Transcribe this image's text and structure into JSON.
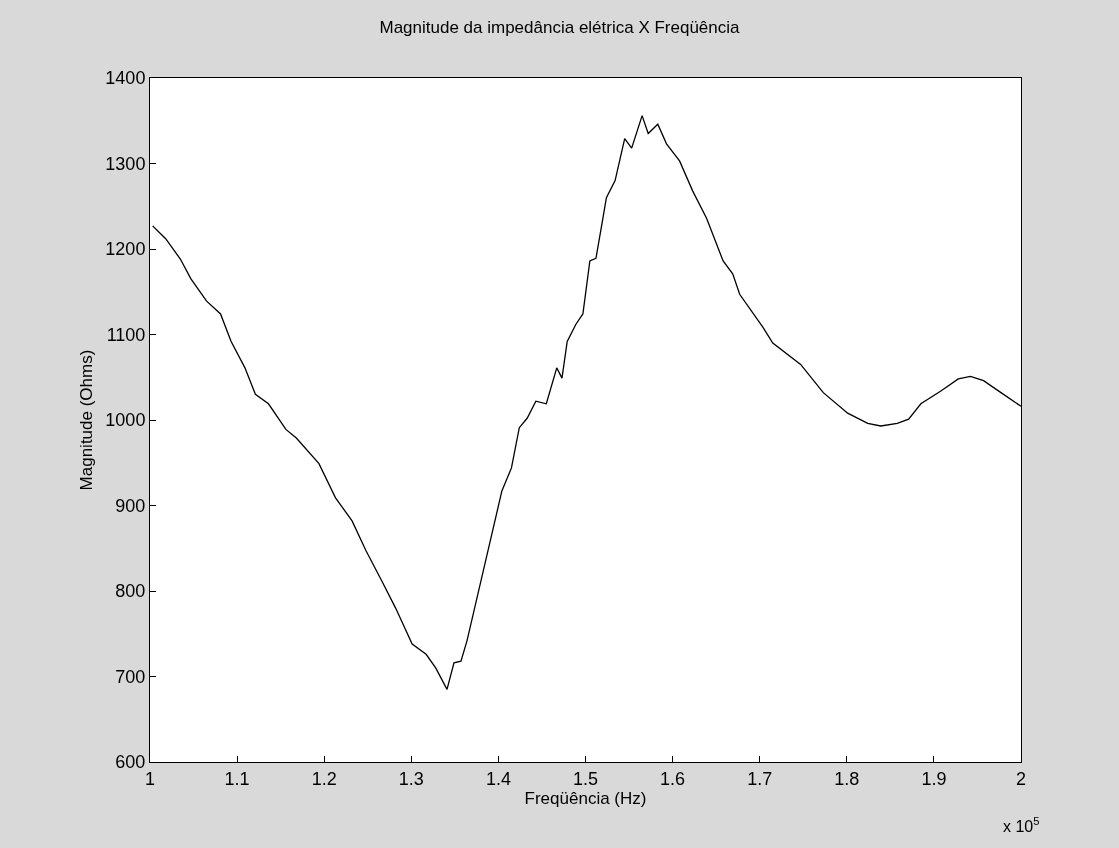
{
  "chart_data": {
    "type": "line",
    "title": "Magnitude da impedância elétrica X Freqüência",
    "xlabel": "Freqüência (Hz)",
    "ylabel": "Magnitude (Ohms)",
    "annotations": [
      "x 10$^{5}$"
    ],
    "x": [
      1.003,
      1.018,
      1.035,
      1.047,
      1.065,
      1.081,
      1.093,
      1.109,
      1.121,
      1.136,
      1.156,
      1.168,
      1.194,
      1.213,
      1.232,
      1.248,
      1.266,
      1.282,
      1.301,
      1.317,
      1.328,
      1.341,
      1.349,
      1.357,
      1.364,
      1.404,
      1.415,
      1.424,
      1.433,
      1.443,
      1.455,
      1.467,
      1.473,
      1.479,
      1.489,
      1.497,
      1.505,
      1.512,
      1.52,
      1.524,
      1.534,
      1.545,
      1.553,
      1.565,
      1.572,
      1.583,
      1.593,
      1.608,
      1.623,
      1.639,
      1.658,
      1.669,
      1.677,
      1.704,
      1.715,
      1.747,
      1.773,
      1.801,
      1.824,
      1.839,
      1.858,
      1.871,
      1.885,
      1.908,
      1.928,
      1.942,
      1.957,
      1.977,
      2.0
    ],
    "series": [
      {
        "color": "#000000",
        "values": [
          1227,
          1212,
          1188,
          1165,
          1139,
          1124,
          1092,
          1061,
          1030,
          1019,
          989,
          979,
          949,
          909,
          882,
          847,
          812,
          780,
          738,
          726,
          710,
          685,
          716,
          718,
          742,
          917,
          944,
          991,
          1002,
          1022,
          1019,
          1061,
          1049,
          1092,
          1112,
          1124,
          1186,
          1189,
          1236,
          1260,
          1280,
          1329,
          1318,
          1356,
          1335,
          1346,
          1323,
          1303,
          1268,
          1236,
          1186,
          1171,
          1147,
          1108,
          1090,
          1065,
          1032,
          1008,
          996,
          993,
          996,
          1001,
          1019,
          1034,
          1048,
          1051,
          1046,
          1032,
          1016
        ]
      }
    ],
    "xlim": [
      1,
      2
    ],
    "xticks": [
      1,
      1.1,
      1.2,
      1.3,
      1.4,
      1.5,
      1.6,
      1.7,
      1.8,
      1.9,
      2
    ],
    "ylim": [
      600,
      1400
    ],
    "yticks": [
      600,
      700,
      800,
      900,
      1000,
      1100,
      1200,
      1300,
      1400
    ],
    "grid": false,
    "marker": "none",
    "line_style": "solid"
  }
}
